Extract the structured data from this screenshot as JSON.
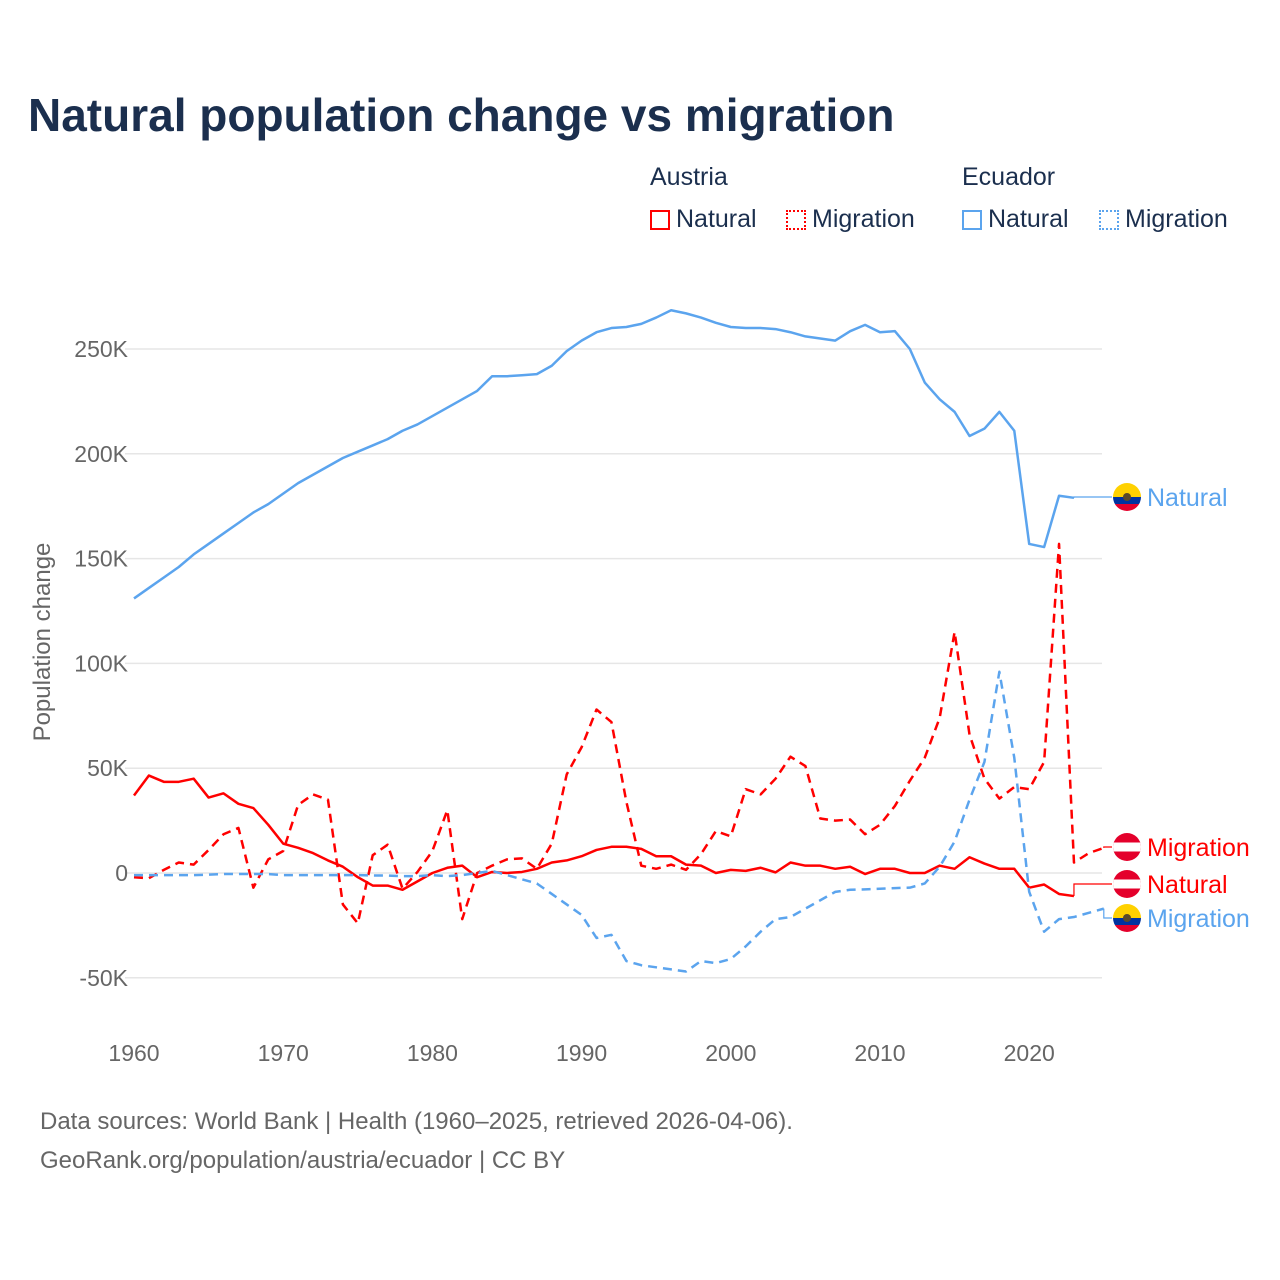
{
  "title": "Natural population change vs migration",
  "legend": {
    "groups": [
      {
        "label": "Austria",
        "color": "#ff0000",
        "items": [
          "Natural",
          "Migration"
        ]
      },
      {
        "label": "Ecuador",
        "color": "#5ba4ee",
        "items": [
          "Natural",
          "Migration"
        ]
      }
    ]
  },
  "footer": {
    "line1": "Data sources: World Bank | Health (1960–2025, retrieved 2026-04-06).",
    "line2": "GeoRank.org/population/austria/ecuador | CC BY"
  },
  "chart_data": {
    "type": "line",
    "title": "Natural population change vs migration",
    "xlabel": "",
    "ylabel": "Population change",
    "xlim": [
      1960,
      2025
    ],
    "ylim": [
      -65000,
      275000
    ],
    "x_ticks": [
      1960,
      1970,
      1980,
      1990,
      2000,
      2010,
      2020
    ],
    "y_ticks": [
      -50000,
      0,
      50000,
      100000,
      150000,
      200000,
      250000
    ],
    "y_tick_labels": [
      "-50K",
      "0",
      "50K",
      "100K",
      "150K",
      "200K",
      "250K"
    ],
    "grid": true,
    "start_year": 1960,
    "series": [
      {
        "name": "Natural",
        "country": "Austria",
        "color": "#ff0000",
        "dash": false,
        "end_label": "Natural",
        "values": [
          37000,
          46500,
          43500,
          43500,
          45000,
          36000,
          38000,
          33000,
          31000,
          23000,
          14000,
          12000,
          9500,
          6000,
          3000,
          -2000,
          -6000,
          -6000,
          -8000,
          -4000,
          0,
          2500,
          3500,
          -2000,
          500,
          0,
          500,
          2000,
          5000,
          6000,
          8000,
          11000,
          12500,
          12500,
          11500,
          8000,
          8000,
          4000,
          3500,
          0,
          1500,
          1000,
          2500,
          300,
          5000,
          3500,
          3500,
          2000,
          3000,
          -500,
          2000,
          2000,
          0,
          0,
          3500,
          2000,
          7500,
          4500,
          2000,
          2000,
          -7000,
          -5500,
          -10000,
          -11000
        ]
      },
      {
        "name": "Migration",
        "country": "Austria",
        "color": "#ff0000",
        "dash": true,
        "end_label": "Migration",
        "values": [
          -2000,
          -2500,
          1500,
          5000,
          4000,
          11000,
          18500,
          21500,
          -7000,
          6500,
          10500,
          32500,
          37500,
          35000,
          -15000,
          -24000,
          8500,
          13500,
          -7500,
          500,
          10500,
          30000,
          -22000,
          0,
          3500,
          6500,
          7000,
          2000,
          14000,
          47000,
          60000,
          78000,
          72000,
          34000,
          3500,
          2000,
          4000,
          1500,
          9000,
          20000,
          17500,
          40000,
          37500,
          45000,
          55500,
          51000,
          26000,
          25000,
          25500,
          18500,
          23000,
          32000,
          44000,
          55000,
          74000,
          115000,
          66000,
          45000,
          35500,
          41000,
          40000,
          53000,
          157000,
          5000,
          9500,
          12000
        ]
      },
      {
        "name": "Natural",
        "country": "Ecuador",
        "color": "#5ba4ee",
        "dash": false,
        "end_label": "Natural",
        "values": [
          131000,
          136000,
          141000,
          146000,
          152000,
          157000,
          162000,
          167000,
          172000,
          176000,
          181000,
          186000,
          190000,
          194000,
          198000,
          201000,
          204000,
          207000,
          211000,
          214000,
          218000,
          222000,
          226000,
          230000,
          237000,
          237000,
          237500,
          238000,
          242000,
          249000,
          254000,
          258000,
          260000,
          260500,
          262000,
          265000,
          268500,
          267000,
          265000,
          262500,
          260500,
          260000,
          260000,
          259500,
          258000,
          256000,
          255000,
          254000,
          258500,
          261500,
          258000,
          258500,
          250000,
          234000,
          226000,
          220000,
          208500,
          212000,
          220000,
          211000,
          157000,
          155500,
          180000,
          179000
        ]
      },
      {
        "name": "Migration",
        "country": "Ecuador",
        "color": "#5ba4ee",
        "dash": true,
        "end_label": "Migration",
        "values": [
          -1000,
          -1000,
          -1000,
          -1000,
          -1000,
          -800,
          -500,
          -500,
          -500,
          -500,
          -1000,
          -1000,
          -1000,
          -1000,
          -1000,
          -1000,
          -1200,
          -1200,
          -1500,
          -1500,
          -1000,
          -1500,
          -1000,
          0,
          1000,
          -1000,
          -3000,
          -5000,
          -10000,
          -15000,
          -20000,
          -31000,
          -29500,
          -42000,
          -44000,
          -45000,
          -46000,
          -47000,
          -42000,
          -43000,
          -41000,
          -35000,
          -28000,
          -22000,
          -21000,
          -17000,
          -13000,
          -9000,
          -8000,
          -7800,
          -7500,
          -7200,
          -7000,
          -5000,
          3000,
          15000,
          35000,
          53000,
          96000,
          55000,
          -9000,
          -28000,
          -22000,
          -21000,
          -19000,
          -17000
        ]
      }
    ]
  }
}
